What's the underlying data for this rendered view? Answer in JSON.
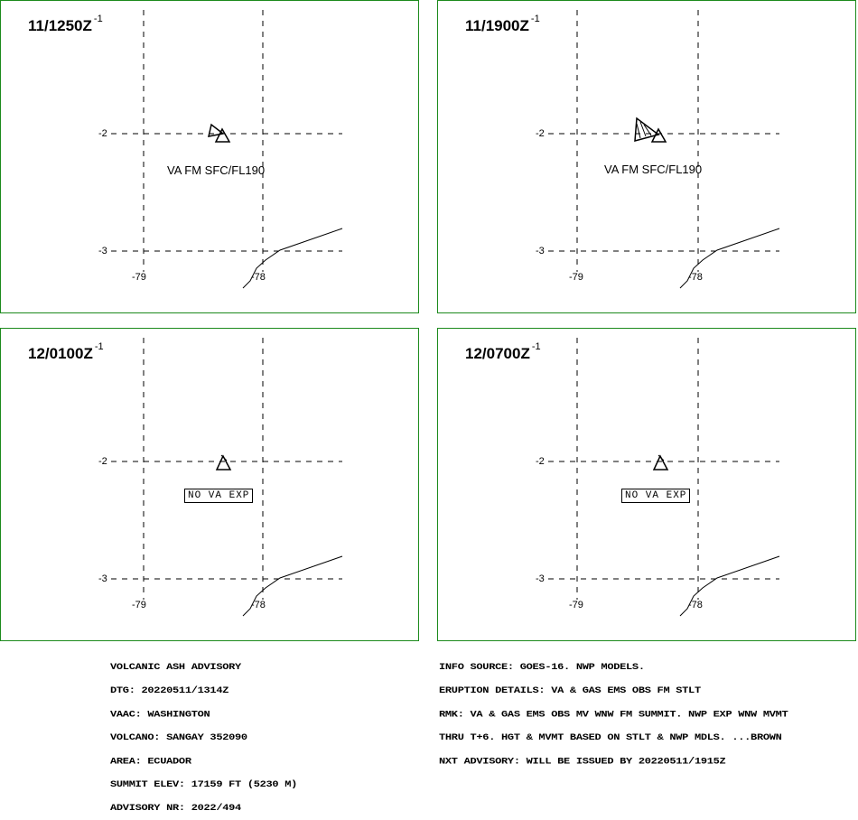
{
  "panels": [
    {
      "time": "11/1250Z",
      "sup": "-1",
      "va_text": "VA FM SFC/FL190",
      "no_va": "",
      "lat_labels": [
        "-2",
        "-3"
      ],
      "lon_labels": [
        "-79",
        "-78"
      ]
    },
    {
      "time": "11/1900Z",
      "sup": "-1",
      "va_text": "VA FM SFC/FL190",
      "no_va": "",
      "lat_labels": [
        "-2",
        "-3"
      ],
      "lon_labels": [
        "-79",
        "-78"
      ]
    },
    {
      "time": "12/0100Z",
      "sup": "-1",
      "va_text": "",
      "no_va": "NO VA EXP",
      "lat_labels": [
        "-2",
        "-3"
      ],
      "lon_labels": [
        "-79",
        "-78"
      ]
    },
    {
      "time": "12/0700Z",
      "sup": "-1",
      "va_text": "",
      "no_va": "NO VA EXP",
      "lat_labels": [
        "-2",
        "-3"
      ],
      "lon_labels": [
        "-79",
        "-78"
      ]
    }
  ],
  "advisory_left": [
    "VOLCANIC ASH ADVISORY",
    "DTG: 20220511/1314Z",
    "VAAC: WASHINGTON",
    "VOLCANO: SANGAY 352090",
    "AREA: ECUADOR",
    "SUMMIT ELEV: 17159 FT (5230 M)",
    "ADVISORY NR: 2022/494"
  ],
  "advisory_right": [
    "INFO SOURCE: GOES-16. NWP MODELS.",
    "ERUPTION DETAILS: VA & GAS EMS OBS FM STLT",
    "RMK: VA & GAS EMS OBS MV WNW FM SUMMIT. NWP EXP WNW MVMT",
    "THRU T+6. HGT & MVMT BASED ON STLT & NWP MDLS. ...BROWN",
    "NXT ADVISORY: WILL BE ISSUED BY 20220511/1915Z"
  ],
  "colors": {
    "frame": "#1c8a1c",
    "lines": "#000000"
  },
  "icons": {
    "volcano": "volcano-triangle-icon",
    "ash_cloud": "ash-cloud-polygon-icon"
  }
}
